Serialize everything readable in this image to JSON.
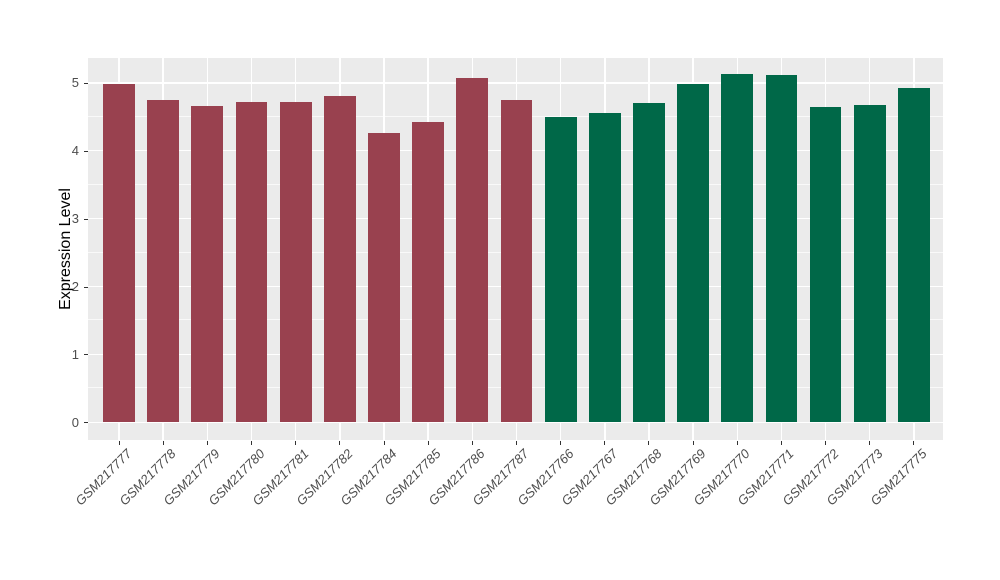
{
  "chart_data": {
    "type": "bar",
    "title": "",
    "xlabel": "",
    "ylabel": "Expression Level",
    "ylim": [
      0,
      5.36
    ],
    "yticks": [
      0,
      1,
      2,
      3,
      4,
      5
    ],
    "yminor_ticks": [
      0.5,
      1.5,
      2.5,
      3.5,
      4.5
    ],
    "grid": "white major and minor horizontal lines plus white vertical lines at each bar center on grey panel",
    "legend_position": "none",
    "categories": [
      "GSM217777",
      "GSM217778",
      "GSM217779",
      "GSM217780",
      "GSM217781",
      "GSM217782",
      "GSM217784",
      "GSM217785",
      "GSM217786",
      "GSM217787",
      "GSM217766",
      "GSM217767",
      "GSM217768",
      "GSM217769",
      "GSM217770",
      "GSM217771",
      "GSM217772",
      "GSM217773",
      "GSM217775"
    ],
    "values": [
      4.99,
      4.75,
      4.66,
      4.72,
      4.72,
      4.81,
      4.26,
      4.42,
      5.07,
      4.75,
      4.5,
      4.56,
      4.7,
      4.98,
      5.13,
      5.11,
      4.64,
      4.67,
      4.93
    ],
    "bar_groups": [
      "maroon",
      "maroon",
      "maroon",
      "maroon",
      "maroon",
      "maroon",
      "maroon",
      "maroon",
      "maroon",
      "maroon",
      "green",
      "green",
      "green",
      "green",
      "green",
      "green",
      "green",
      "green",
      "green"
    ],
    "group_colors": {
      "maroon": "#99414F",
      "green": "#006848"
    }
  },
  "colors": {
    "panel_bg": "#EBEBEB",
    "grid": "#FFFFFF",
    "axis_text": "#4D4D4D",
    "axis_title": "#000000",
    "tick": "#333333",
    "background": "#FFFFFF"
  }
}
